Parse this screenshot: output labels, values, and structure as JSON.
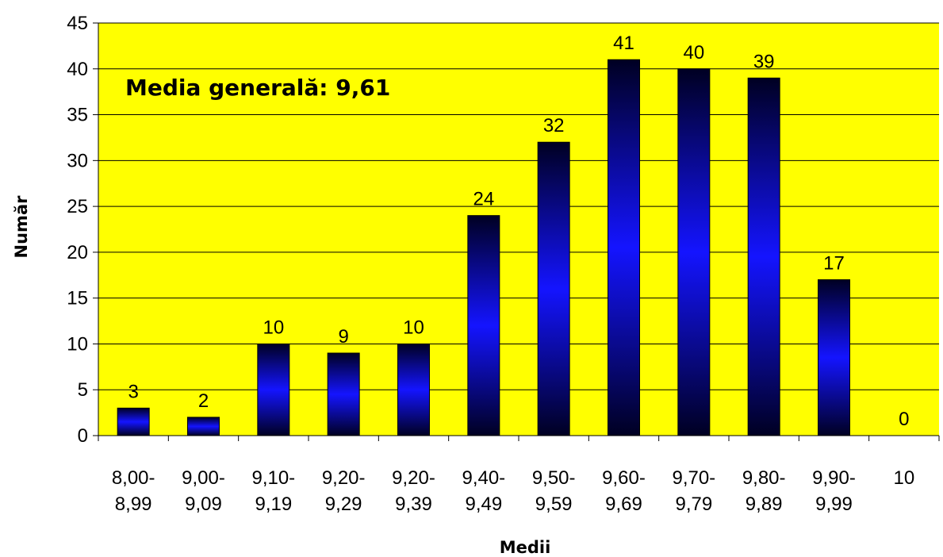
{
  "chart_data": {
    "type": "bar",
    "categories": [
      [
        "8,00-",
        "8,99"
      ],
      [
        "9,00-",
        "9,09"
      ],
      [
        "9,10-",
        "9,19"
      ],
      [
        "9,20-",
        "9,29"
      ],
      [
        "9,20-",
        "9,39"
      ],
      [
        "9,40-",
        "9,49"
      ],
      [
        "9,50-",
        "9,59"
      ],
      [
        "9,60-",
        "9,69"
      ],
      [
        "9,70-",
        "9,79"
      ],
      [
        "9,80-",
        "9,89"
      ],
      [
        "9,90-",
        "9,99"
      ],
      [
        "10"
      ]
    ],
    "values": [
      3,
      2,
      10,
      9,
      10,
      24,
      32,
      41,
      40,
      39,
      17,
      0
    ],
    "xlabel": "Medii",
    "ylabel": "Număr",
    "annotation": "Media generală: 9,61",
    "ylim": [
      0,
      45
    ],
    "yticks": [
      0,
      5,
      10,
      15,
      20,
      25,
      30,
      35,
      40,
      45
    ],
    "grid": true,
    "legend": "none",
    "plot_background": "#FFFF00",
    "bar_color_dark": "#000022",
    "bar_color_light": "#1414FF"
  }
}
